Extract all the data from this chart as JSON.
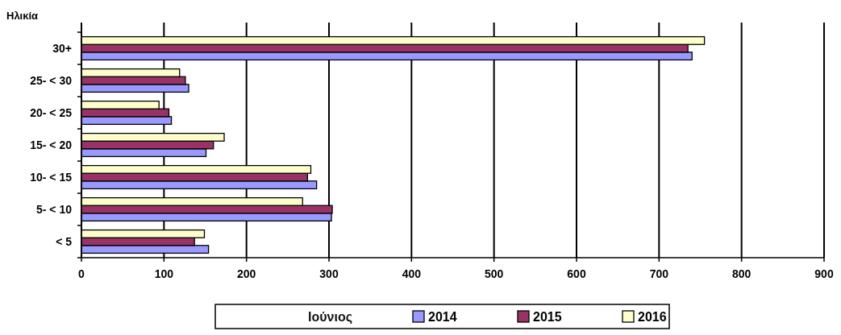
{
  "chart_data": {
    "type": "bar",
    "orientation": "horizontal",
    "ylabel": "Ηλικία",
    "legend_title": "Ιούνιος",
    "categories": [
      "30+",
      "25- < 30",
      "20- < 25",
      "15- < 20",
      "10- < 15",
      "5- < 10",
      "< 5"
    ],
    "series": [
      {
        "name": "2014",
        "color": "#9999ff",
        "values": [
          740,
          130,
          109,
          151,
          285,
          303,
          154
        ]
      },
      {
        "name": "2015",
        "color": "#993366",
        "values": [
          735,
          126,
          106,
          160,
          274,
          304,
          137
        ]
      },
      {
        "name": "2016",
        "color": "#ffffcc",
        "values": [
          755,
          119,
          94,
          173,
          278,
          268,
          149
        ]
      }
    ],
    "xlim": [
      0,
      900
    ],
    "xticks": [
      0,
      100,
      200,
      300,
      400,
      500,
      600,
      700,
      800,
      900
    ],
    "grid": "x",
    "legend": "bottom"
  }
}
